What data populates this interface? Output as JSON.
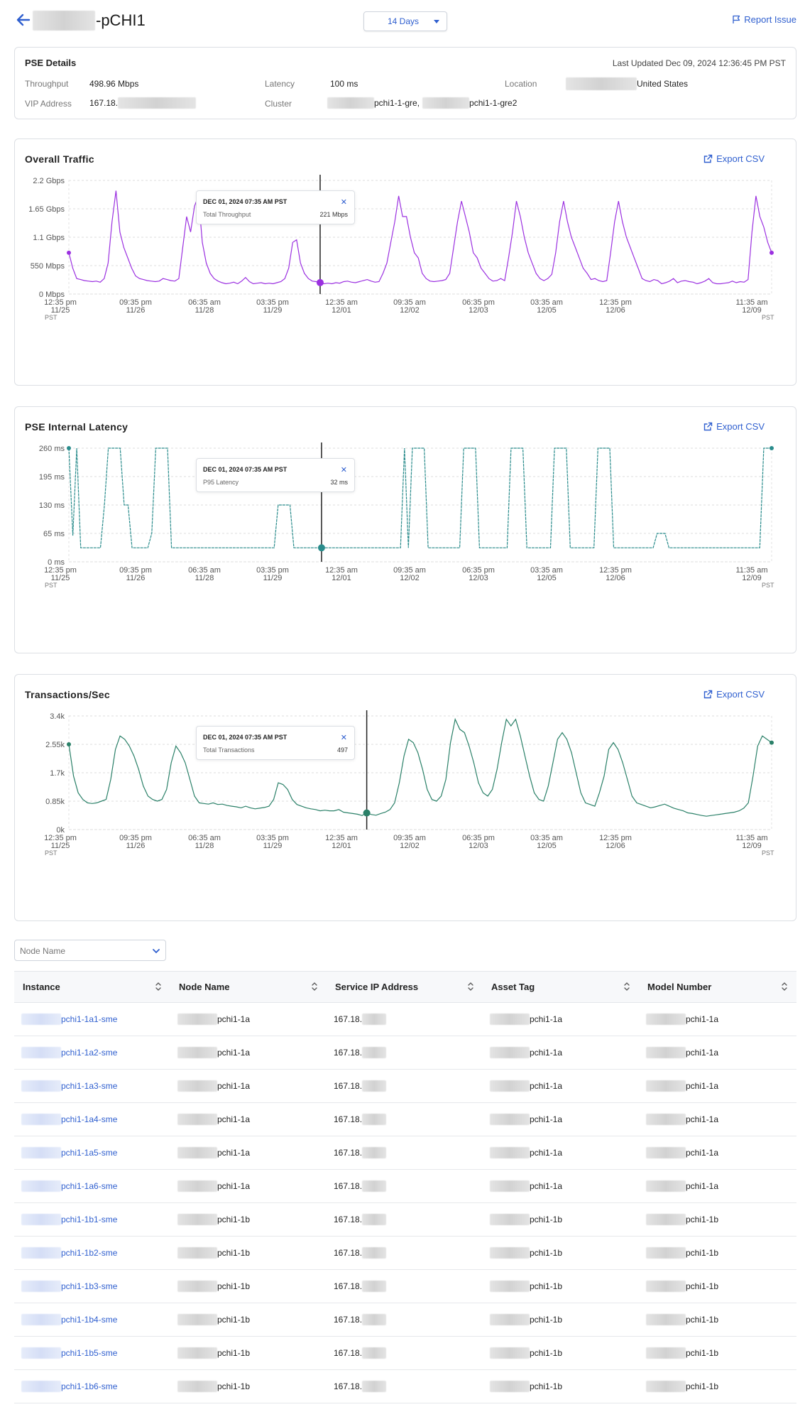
{
  "header": {
    "title": "-pCHI1",
    "range": "14 Days",
    "report_label": "Report Issue"
  },
  "details": {
    "title": "PSE Details",
    "last_updated": "Last Updated Dec 09, 2024 12:36:45 PM PST",
    "throughput_label": "Throughput",
    "throughput_value": "498.96 Mbps",
    "latency_label": "Latency",
    "latency_value": "100 ms",
    "location_label": "Location",
    "location_value": "United States",
    "vip_label": "VIP Address",
    "vip_value": "167.18.",
    "cluster_label": "Cluster",
    "cluster_value_1": "pchi1-1-gre,",
    "cluster_value_2": "pchi1-1-gre2"
  },
  "export_label": "Export CSV",
  "x_ticks": [
    {
      "time": "12:35 pm",
      "date": "11/25"
    },
    {
      "time": "09:35 pm",
      "date": "11/26"
    },
    {
      "time": "06:35 am",
      "date": "11/28"
    },
    {
      "time": "03:35 pm",
      "date": "11/29"
    },
    {
      "time": "12:35 am",
      "date": "12/01"
    },
    {
      "time": "09:35 am",
      "date": "12/02"
    },
    {
      "time": "06:35 pm",
      "date": "12/03"
    },
    {
      "time": "03:35 am",
      "date": "12/05"
    },
    {
      "time": "12:35 pm",
      "date": "12/06"
    },
    {
      "time": "11:35 am",
      "date": "12/09"
    }
  ],
  "tz_label": "PST",
  "chart_data": [
    {
      "type": "line",
      "title": "Overall Traffic",
      "color": "#9b30e0",
      "y_ticks": [
        "0 Mbps",
        "550 Mbps",
        "1.1 Gbps",
        "1.65 Gbps",
        "2.2 Gbps"
      ],
      "ylim": [
        0,
        2200
      ],
      "y_unit": "Mbps",
      "tooltip": {
        "date": "DEC 01, 2024 07:35 AM PST",
        "label": "Total Throughput",
        "value": "221 Mbps"
      },
      "cursor_index": 64,
      "values": [
        800,
        500,
        300,
        280,
        260,
        250,
        240,
        250,
        230,
        300,
        600,
        1400,
        2000,
        1200,
        900,
        700,
        500,
        350,
        300,
        280,
        260,
        250,
        240,
        250,
        300,
        280,
        260,
        250,
        300,
        900,
        1500,
        1200,
        1700,
        1900,
        1000,
        600,
        400,
        300,
        250,
        220,
        200,
        210,
        230,
        200,
        250,
        320,
        240,
        200,
        210,
        220,
        200,
        210,
        200,
        220,
        240,
        300,
        500,
        1000,
        1050,
        600,
        400,
        300,
        250,
        240,
        221,
        200,
        210,
        200,
        220,
        210,
        240,
        250,
        230,
        220,
        240,
        260,
        280,
        250,
        230,
        240,
        400,
        600,
        1000,
        1400,
        1900,
        1500,
        1500,
        1100,
        800,
        700,
        400,
        300,
        250,
        240,
        250,
        260,
        280,
        400,
        900,
        1400,
        1800,
        1500,
        1200,
        800,
        700,
        500,
        400,
        300,
        250,
        260,
        300,
        260,
        700,
        1200,
        1800,
        1500,
        1100,
        800,
        600,
        400,
        300,
        260,
        300,
        380,
        800,
        1400,
        1800,
        1400,
        1100,
        900,
        700,
        500,
        400,
        280,
        300,
        260,
        240,
        260,
        800,
        1400,
        1800,
        1400,
        1100,
        900,
        700,
        500,
        300,
        260,
        240,
        280,
        260,
        200,
        220,
        250,
        300,
        220,
        250,
        260,
        240,
        230,
        200,
        220,
        250,
        300,
        220,
        200,
        200,
        210,
        220,
        250,
        220,
        240,
        230,
        280,
        1200,
        1900,
        1500,
        1300,
        1000,
        800
      ]
    },
    {
      "type": "line",
      "title": "PSE Internal Latency",
      "color": "#2a8c8c",
      "y_ticks": [
        "0 ms",
        "65 ms",
        "130 ms",
        "195 ms",
        "260 ms"
      ],
      "ylim": [
        0,
        260
      ],
      "y_unit": "ms",
      "tooltip": {
        "date": "DEC 01, 2024 07:35 AM PST",
        "label": "P95 Latency",
        "value": "32 ms"
      },
      "cursor_index": 64,
      "values": [
        260,
        60,
        260,
        32,
        32,
        32,
        32,
        32,
        32,
        130,
        260,
        260,
        260,
        260,
        130,
        130,
        32,
        32,
        32,
        32,
        32,
        65,
        260,
        260,
        260,
        260,
        32,
        32,
        32,
        32,
        32,
        32,
        32,
        32,
        32,
        32,
        32,
        32,
        32,
        32,
        32,
        32,
        32,
        32,
        32,
        32,
        32,
        32,
        32,
        32,
        32,
        32,
        32,
        130,
        130,
        130,
        130,
        32,
        32,
        32,
        32,
        32,
        32,
        32,
        32,
        32,
        32,
        32,
        32,
        32,
        32,
        32,
        32,
        32,
        32,
        32,
        32,
        32,
        32,
        32,
        32,
        32,
        32,
        32,
        32,
        260,
        32,
        260,
        260,
        260,
        260,
        32,
        32,
        32,
        32,
        32,
        32,
        32,
        32,
        32,
        260,
        260,
        260,
        260,
        32,
        32,
        32,
        32,
        32,
        32,
        32,
        32,
        260,
        260,
        260,
        260,
        32,
        32,
        32,
        32,
        32,
        32,
        32,
        260,
        260,
        260,
        260,
        32,
        32,
        32,
        32,
        32,
        32,
        32,
        260,
        260,
        260,
        260,
        32,
        32,
        32,
        32,
        32,
        32,
        32,
        32,
        32,
        32,
        32,
        65,
        65,
        65,
        32,
        32,
        32,
        32,
        32,
        32,
        32,
        32,
        32,
        32,
        32,
        32,
        32,
        32,
        32,
        32,
        32,
        32,
        32,
        32,
        32,
        32,
        32,
        32,
        260,
        260,
        260
      ]
    },
    {
      "type": "line",
      "title": "Transactions/Sec",
      "color": "#2a8068",
      "y_ticks": [
        "0k",
        "0.85k",
        "1.7k",
        "2.55k",
        "3.4k"
      ],
      "ylim": [
        0,
        3400
      ],
      "y_unit": "k",
      "tooltip": {
        "date": "DEC 01, 2024 07:35 AM PST",
        "label": "Total Transactions",
        "value": "497"
      },
      "cursor_index": 64,
      "values": [
        2550,
        1600,
        1100,
        900,
        800,
        780,
        800,
        850,
        900,
        1500,
        2400,
        2800,
        2700,
        2500,
        2200,
        1800,
        1300,
        1000,
        900,
        850,
        900,
        1200,
        2000,
        2500,
        2300,
        2000,
        1500,
        1000,
        800,
        780,
        760,
        800,
        750,
        760,
        720,
        700,
        680,
        650,
        700,
        650,
        620,
        640,
        660,
        700,
        900,
        1400,
        1350,
        1200,
        900,
        750,
        700,
        650,
        620,
        600,
        560,
        580,
        560,
        560,
        600,
        520,
        500,
        480,
        460,
        420,
        497,
        450,
        430,
        480,
        520,
        600,
        800,
        1400,
        2200,
        2700,
        2600,
        2300,
        1800,
        1200,
        900,
        850,
        1000,
        1500,
        2600,
        3300,
        3000,
        2900,
        2500,
        2000,
        1400,
        1100,
        1000,
        1200,
        1800,
        2600,
        3300,
        3100,
        3300,
        2800,
        2200,
        1600,
        1100,
        900,
        850,
        1300,
        2000,
        2700,
        2900,
        2700,
        2300,
        1700,
        1100,
        800,
        750,
        700,
        1100,
        1600,
        2400,
        2600,
        2400,
        2000,
        1500,
        1000,
        800,
        750,
        700,
        650,
        680,
        720,
        760,
        700,
        640,
        600,
        560,
        500,
        480,
        450,
        420,
        400,
        420,
        440,
        460,
        480,
        500,
        520,
        560,
        640,
        800,
        1600,
        2500,
        2800,
        2700,
        2600
      ]
    }
  ],
  "node_filter_placeholder": "Node Name",
  "table": {
    "columns": [
      "Instance",
      "Node Name",
      "Service IP Address",
      "Asset Tag",
      "Model Number"
    ],
    "rows": [
      {
        "instance": "pchi1-1a1-sme",
        "node": "pchi1-1a",
        "ip": "167.18.",
        "asset": "pchi1-1a",
        "model": "pchi1-1a"
      },
      {
        "instance": "pchi1-1a2-sme",
        "node": "pchi1-1a",
        "ip": "167.18.",
        "asset": "pchi1-1a",
        "model": "pchi1-1a"
      },
      {
        "instance": "pchi1-1a3-sme",
        "node": "pchi1-1a",
        "ip": "167.18.",
        "asset": "pchi1-1a",
        "model": "pchi1-1a"
      },
      {
        "instance": "pchi1-1a4-sme",
        "node": "pchi1-1a",
        "ip": "167.18.",
        "asset": "pchi1-1a",
        "model": "pchi1-1a"
      },
      {
        "instance": "pchi1-1a5-sme",
        "node": "pchi1-1a",
        "ip": "167.18.",
        "asset": "pchi1-1a",
        "model": "pchi1-1a"
      },
      {
        "instance": "pchi1-1a6-sme",
        "node": "pchi1-1a",
        "ip": "167.18.",
        "asset": "pchi1-1a",
        "model": "pchi1-1a"
      },
      {
        "instance": "pchi1-1b1-sme",
        "node": "pchi1-1b",
        "ip": "167.18.",
        "asset": "pchi1-1b",
        "model": "pchi1-1b"
      },
      {
        "instance": "pchi1-1b2-sme",
        "node": "pchi1-1b",
        "ip": "167.18.",
        "asset": "pchi1-1b",
        "model": "pchi1-1b"
      },
      {
        "instance": "pchi1-1b3-sme",
        "node": "pchi1-1b",
        "ip": "167.18.",
        "asset": "pchi1-1b",
        "model": "pchi1-1b"
      },
      {
        "instance": "pchi1-1b4-sme",
        "node": "pchi1-1b",
        "ip": "167.18.",
        "asset": "pchi1-1b",
        "model": "pchi1-1b"
      },
      {
        "instance": "pchi1-1b5-sme",
        "node": "pchi1-1b",
        "ip": "167.18.",
        "asset": "pchi1-1b",
        "model": "pchi1-1b"
      },
      {
        "instance": "pchi1-1b6-sme",
        "node": "pchi1-1b",
        "ip": "167.18.",
        "asset": "pchi1-1b",
        "model": "pchi1-1b"
      }
    ]
  }
}
